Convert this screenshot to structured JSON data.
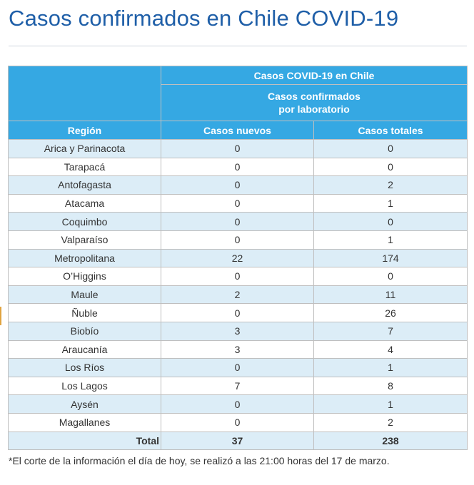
{
  "page": {
    "title": "Casos confirmados en Chile COVID-19",
    "footnote": "*El corte de la información el día de hoy, se realizó a las 21:00 horas del 17 de marzo."
  },
  "table": {
    "group_header": "Casos COVID-19 en Chile",
    "sub_header_line1": "Casos confirmados",
    "sub_header_line2": "por laboratorio",
    "columns": [
      "Región",
      "Casos nuevos",
      "Casos totales"
    ],
    "rows": [
      [
        "Arica y Parinacota",
        "0",
        "0"
      ],
      [
        "Tarapacá",
        "0",
        "0"
      ],
      [
        "Antofagasta",
        "0",
        "2"
      ],
      [
        "Atacama",
        "0",
        "1"
      ],
      [
        "Coquimbo",
        "0",
        "0"
      ],
      [
        "Valparaíso",
        "0",
        "1"
      ],
      [
        "Metropolitana",
        "22",
        "174"
      ],
      [
        "O’Higgins",
        "0",
        "0"
      ],
      [
        "Maule",
        "2",
        "11"
      ],
      [
        "Ñuble",
        "0",
        "26"
      ],
      [
        "Biobío",
        "3",
        "7"
      ],
      [
        "Araucanía",
        "3",
        "4"
      ],
      [
        "Los Ríos",
        "0",
        "1"
      ],
      [
        "Los Lagos",
        "7",
        "8"
      ],
      [
        "Aysén",
        "0",
        "1"
      ],
      [
        "Magallanes",
        "0",
        "2"
      ]
    ],
    "total": [
      "Total",
      "37",
      "238"
    ]
  },
  "colors": {
    "title": "#1f5fa8",
    "header_bg": "#35a8e3",
    "row_alt_bg": "#dcedf7"
  }
}
